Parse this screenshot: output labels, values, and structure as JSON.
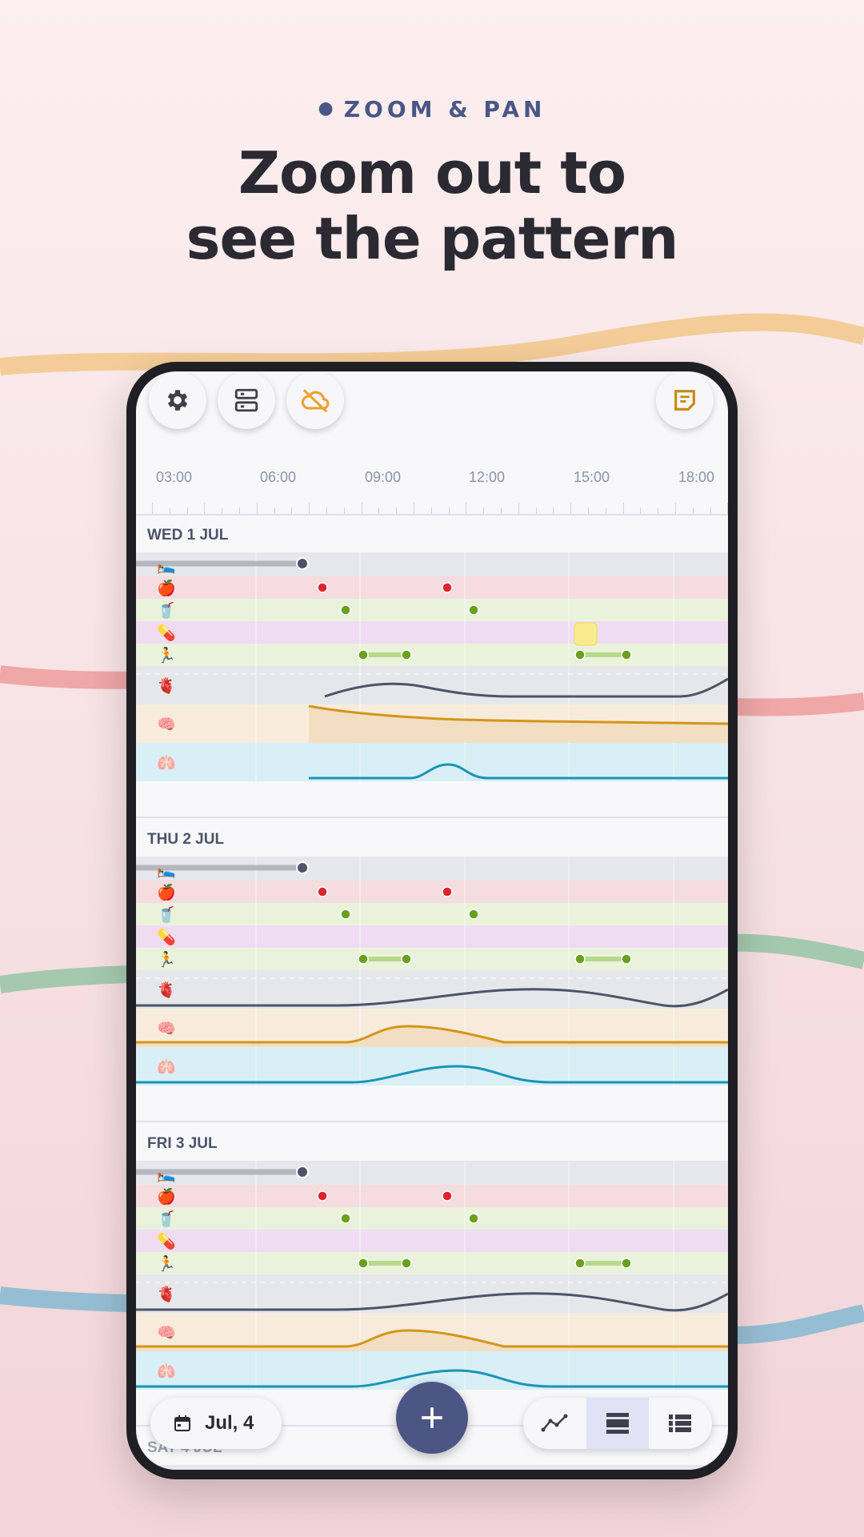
{
  "header": {
    "eyebrow": "ZOOM & PAN",
    "headline_line1": "Zoom out to",
    "headline_line2": "see the pattern"
  },
  "toolbar": {
    "settings_icon": "gear-icon",
    "storage_icon": "server-icon",
    "sync_icon": "cloud-off-icon",
    "notes_icon": "sticky-note-icon"
  },
  "time_axis": [
    "03:00",
    "06:00",
    "09:00",
    "12:00",
    "15:00",
    "18:00"
  ],
  "days": [
    {
      "label": "WED 1 JUL"
    },
    {
      "label": "THU 2 JUL"
    },
    {
      "label": "FRI 3 JUL"
    },
    {
      "label": "SAT 4 JUL"
    }
  ],
  "tracks": [
    {
      "name": "sleep",
      "icon": "🛌",
      "color": "#e6e7eb"
    },
    {
      "name": "food",
      "icon": "🍎",
      "color": "#f5dcdf"
    },
    {
      "name": "drink",
      "icon": "🥤",
      "color": "#e9f3dc"
    },
    {
      "name": "medication",
      "icon": "💊",
      "color": "#efdcf2"
    },
    {
      "name": "activity",
      "icon": "🏃",
      "color": "#e9f3dc"
    },
    {
      "name": "heart",
      "icon": "🫀",
      "color": "#e6e7eb"
    },
    {
      "name": "mind",
      "icon": "🧠",
      "color": "#f7ecdc"
    },
    {
      "name": "breathing",
      "icon": "🫁",
      "color": "#d8eff5"
    }
  ],
  "colors": {
    "accent": "#4b5685",
    "sync": "#f0a032",
    "heart_line": "#4b5468",
    "mind_line": "#d4951a",
    "breath_line": "#1a94b8",
    "activity_dot": "#6aa01e",
    "food_dot": "#e0242c"
  },
  "bottom_bar": {
    "date_label": "Jul, 4",
    "calendar_icon": "calendar-icon",
    "add_icon": "plus-icon",
    "views": [
      "chart-view-icon",
      "rows-view-icon",
      "list-view-icon"
    ],
    "active_view": 1
  }
}
